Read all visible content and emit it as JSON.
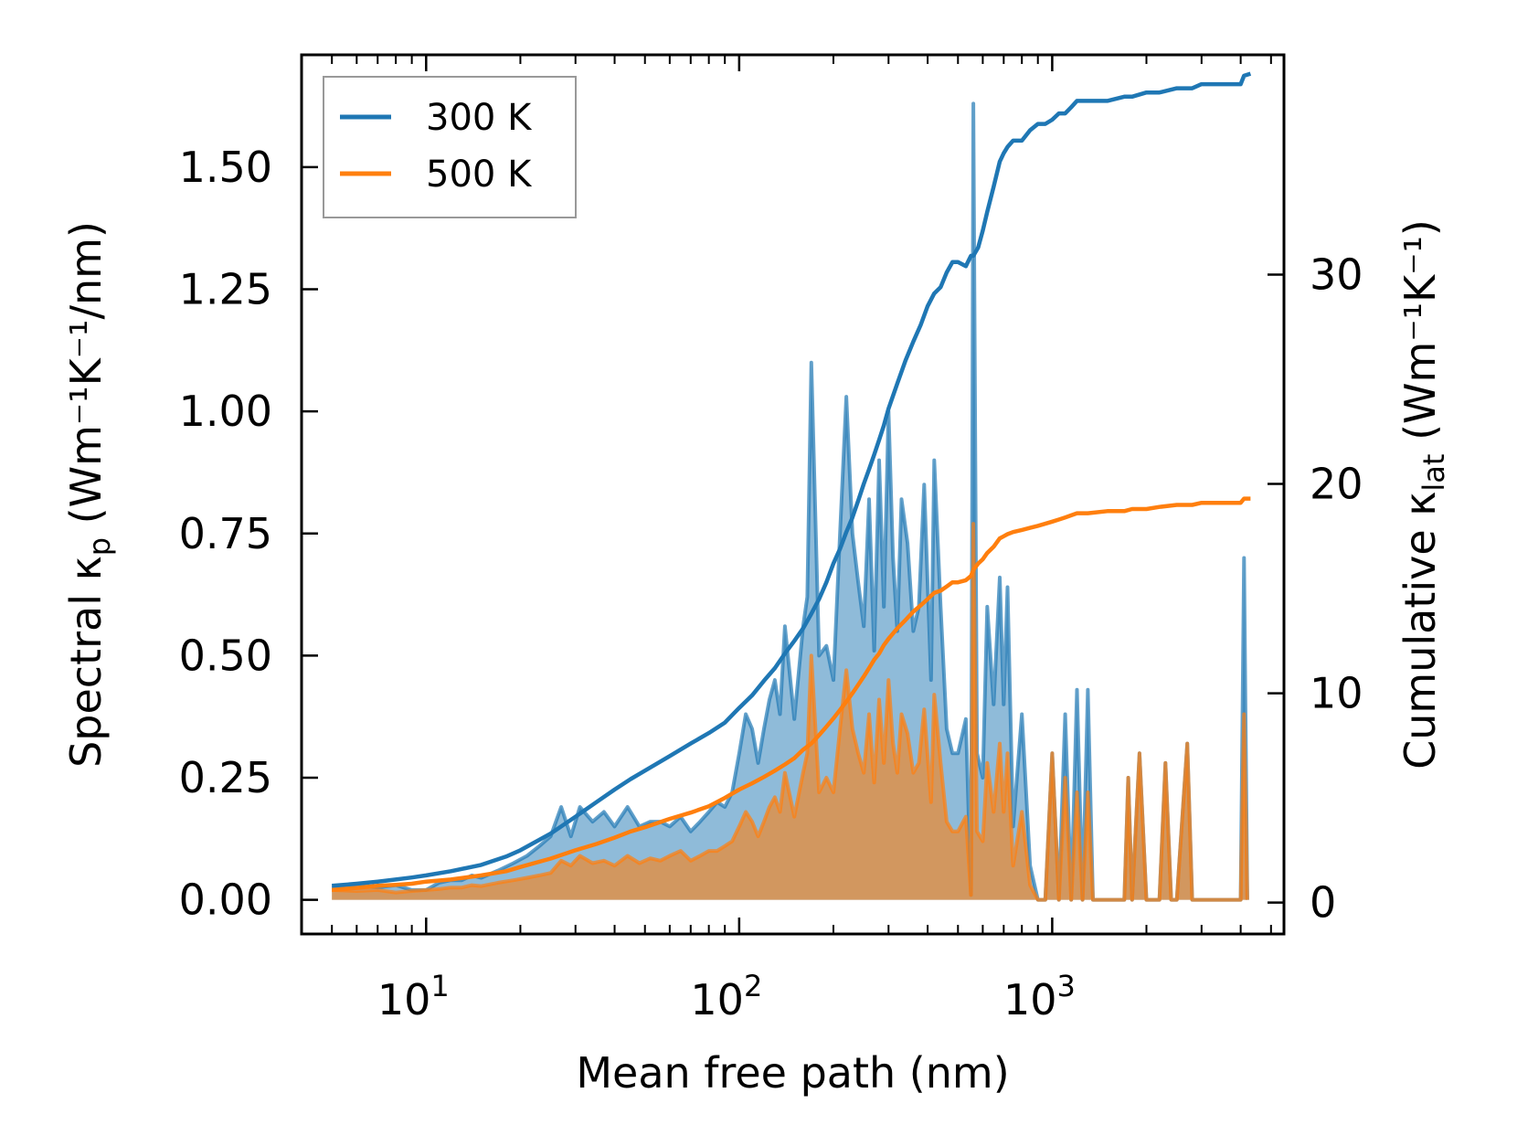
{
  "chart_data": {
    "type": "line",
    "xscale": "log",
    "xlabel": "Mean free path (nm)",
    "ylabel_left": {
      "prefix": "Spectral κ",
      "sub": "p",
      "units": " (Wm⁻¹K⁻¹/nm)"
    },
    "ylabel_right": {
      "prefix": "Cumulative κ",
      "sub": "lat",
      "units": " (Wm⁻¹K⁻¹)"
    },
    "xlim": [
      4.0,
      5500
    ],
    "ylim_left": [
      -0.07,
      1.73
    ],
    "ylim_right": [
      -1.5,
      40.5
    ],
    "x_ticks": [
      {
        "value": 10,
        "base": "10",
        "exp": "1"
      },
      {
        "value": 100,
        "base": "10",
        "exp": "2"
      },
      {
        "value": 1000,
        "base": "10",
        "exp": "3"
      }
    ],
    "y_ticks_left": [
      "0.00",
      "0.25",
      "0.50",
      "0.75",
      "1.00",
      "1.25",
      "1.50"
    ],
    "y_ticks_right": [
      "0",
      "10",
      "20",
      "30"
    ],
    "legend": {
      "position": "upper-left",
      "entries": [
        {
          "label": "300 K",
          "color": "#1f77b4"
        },
        {
          "label": "500 K",
          "color": "#ff7f0e"
        }
      ]
    },
    "series": [
      {
        "name": "300 K",
        "color": "#1f77b4",
        "spectral": {
          "x": [
            5,
            6,
            7,
            8,
            9,
            10,
            11,
            12,
            13,
            14,
            15,
            17,
            19,
            21,
            23,
            25,
            27,
            29,
            31,
            34,
            37,
            40,
            44,
            48,
            52,
            56,
            60,
            65,
            70,
            75,
            80,
            85,
            90,
            95,
            100,
            105,
            110,
            115,
            120,
            125,
            130,
            135,
            140,
            150,
            160,
            165,
            170,
            180,
            190,
            200,
            210,
            220,
            230,
            240,
            250,
            260,
            270,
            280,
            290,
            300,
            310,
            320,
            330,
            345,
            360,
            375,
            390,
            410,
            420,
            440,
            460,
            480,
            500,
            530,
            550,
            560,
            575,
            600,
            620,
            650,
            680,
            700,
            720,
            750,
            800,
            850,
            900,
            950,
            1000,
            1050,
            1100,
            1150,
            1200,
            1250,
            1300,
            1350,
            1500,
            1700,
            1750,
            1800,
            1900,
            2000,
            2200,
            2300,
            2400,
            2500,
            2700,
            2800,
            3000,
            3500,
            4000,
            4100,
            4200
          ],
          "y": [
            0.025,
            0.03,
            0.025,
            0.03,
            0.02,
            0.02,
            0.035,
            0.04,
            0.04,
            0.05,
            0.045,
            0.06,
            0.075,
            0.09,
            0.11,
            0.13,
            0.19,
            0.13,
            0.19,
            0.16,
            0.18,
            0.15,
            0.19,
            0.15,
            0.16,
            0.16,
            0.15,
            0.17,
            0.14,
            0.16,
            0.18,
            0.2,
            0.19,
            0.22,
            0.3,
            0.38,
            0.35,
            0.28,
            0.35,
            0.41,
            0.45,
            0.38,
            0.56,
            0.37,
            0.56,
            0.62,
            1.1,
            0.5,
            0.52,
            0.45,
            0.75,
            1.03,
            0.75,
            0.65,
            0.56,
            0.82,
            0.51,
            0.9,
            0.6,
            1.0,
            0.7,
            0.55,
            0.82,
            0.73,
            0.55,
            0.6,
            0.85,
            0.45,
            0.9,
            0.6,
            0.35,
            0.3,
            0.3,
            0.37,
            0.01,
            1.63,
            0.3,
            0.25,
            0.6,
            0.4,
            0.66,
            0.4,
            0.64,
            0.15,
            0.38,
            0.07,
            0.0,
            0.0,
            0.3,
            0.0,
            0.38,
            0.0,
            0.43,
            0.0,
            0.43,
            0.0,
            0.0,
            0.0,
            0.25,
            0.0,
            0.3,
            0.0,
            0.0,
            0.28,
            0.0,
            0.0,
            0.32,
            0.0,
            0.0,
            0.0,
            0.0,
            0.7,
            0.0
          ]
        },
        "cumulative": {
          "x": [
            5,
            6,
            7,
            8,
            9,
            10,
            12,
            15,
            18,
            20,
            25,
            30,
            35,
            40,
            45,
            50,
            60,
            70,
            80,
            90,
            100,
            110,
            120,
            130,
            140,
            150,
            160,
            170,
            180,
            190,
            200,
            210,
            220,
            230,
            240,
            250,
            260,
            270,
            280,
            290,
            300,
            320,
            340,
            360,
            380,
            400,
            420,
            440,
            460,
            480,
            500,
            530,
            550,
            560,
            580,
            600,
            620,
            650,
            680,
            700,
            720,
            750,
            800,
            850,
            900,
            950,
            1000,
            1050,
            1100,
            1150,
            1200,
            1300,
            1500,
            1700,
            1800,
            2000,
            2200,
            2500,
            2800,
            3000,
            3500,
            4000,
            4100,
            4300
          ],
          "y": [
            0.8,
            0.9,
            1.0,
            1.1,
            1.2,
            1.3,
            1.5,
            1.8,
            2.2,
            2.5,
            3.3,
            4.1,
            4.8,
            5.4,
            5.9,
            6.3,
            7.0,
            7.6,
            8.1,
            8.6,
            9.3,
            9.9,
            10.6,
            11.2,
            11.9,
            12.5,
            13.1,
            13.8,
            14.5,
            15.3,
            16.2,
            16.9,
            17.7,
            18.4,
            19.2,
            20.0,
            20.7,
            21.4,
            22.1,
            22.8,
            23.6,
            24.8,
            25.9,
            26.8,
            27.6,
            28.5,
            29.1,
            29.4,
            30.1,
            30.6,
            30.6,
            30.4,
            30.9,
            30.9,
            31.3,
            32.1,
            33.0,
            34.2,
            35.4,
            35.8,
            36.1,
            36.4,
            36.4,
            36.9,
            37.2,
            37.2,
            37.4,
            37.7,
            37.7,
            38.0,
            38.3,
            38.3,
            38.3,
            38.5,
            38.5,
            38.7,
            38.7,
            38.9,
            38.9,
            39.1,
            39.1,
            39.1,
            39.5,
            39.6
          ]
        }
      },
      {
        "name": "500 K",
        "color": "#ff7f0e",
        "spectral": {
          "x": [
            5,
            6,
            7,
            8,
            9,
            10,
            11,
            12,
            13,
            14,
            15,
            17,
            19,
            21,
            23,
            25,
            27,
            29,
            31,
            34,
            37,
            40,
            44,
            48,
            52,
            56,
            60,
            65,
            70,
            75,
            80,
            85,
            90,
            95,
            100,
            105,
            110,
            115,
            120,
            125,
            130,
            135,
            140,
            150,
            160,
            165,
            170,
            180,
            190,
            200,
            210,
            220,
            230,
            240,
            250,
            260,
            270,
            280,
            290,
            300,
            310,
            320,
            330,
            345,
            360,
            375,
            390,
            410,
            420,
            440,
            460,
            480,
            500,
            530,
            550,
            560,
            575,
            600,
            620,
            650,
            680,
            700,
            720,
            750,
            800,
            850,
            900,
            950,
            1000,
            1050,
            1100,
            1150,
            1200,
            1250,
            1300,
            1350,
            1500,
            1700,
            1750,
            1800,
            1900,
            2000,
            2200,
            2300,
            2400,
            2500,
            2700,
            2800,
            3000,
            3500,
            4000,
            4100,
            4200
          ],
          "y": [
            0.02,
            0.018,
            0.02,
            0.015,
            0.018,
            0.02,
            0.022,
            0.025,
            0.025,
            0.03,
            0.028,
            0.035,
            0.04,
            0.045,
            0.05,
            0.055,
            0.08,
            0.07,
            0.09,
            0.075,
            0.08,
            0.07,
            0.09,
            0.075,
            0.085,
            0.08,
            0.09,
            0.1,
            0.08,
            0.09,
            0.1,
            0.1,
            0.11,
            0.12,
            0.15,
            0.18,
            0.16,
            0.13,
            0.16,
            0.19,
            0.21,
            0.18,
            0.26,
            0.17,
            0.26,
            0.3,
            0.5,
            0.22,
            0.25,
            0.22,
            0.35,
            0.47,
            0.35,
            0.3,
            0.26,
            0.38,
            0.24,
            0.41,
            0.28,
            0.45,
            0.32,
            0.26,
            0.38,
            0.34,
            0.26,
            0.28,
            0.39,
            0.2,
            0.42,
            0.28,
            0.16,
            0.14,
            0.14,
            0.17,
            0.01,
            0.77,
            0.14,
            0.12,
            0.28,
            0.18,
            0.32,
            0.18,
            0.3,
            0.07,
            0.18,
            0.03,
            0.0,
            0.0,
            0.3,
            0.0,
            0.25,
            0.0,
            0.22,
            0.0,
            0.22,
            0.0,
            0.0,
            0.0,
            0.25,
            0.0,
            0.3,
            0.0,
            0.0,
            0.28,
            0.0,
            0.0,
            0.32,
            0.0,
            0.0,
            0.0,
            0.0,
            0.38,
            0.0
          ]
        },
        "cumulative": {
          "x": [
            5,
            6,
            7,
            8,
            9,
            10,
            12,
            15,
            18,
            20,
            25,
            30,
            35,
            40,
            45,
            50,
            60,
            70,
            80,
            90,
            100,
            110,
            120,
            130,
            140,
            150,
            160,
            170,
            180,
            190,
            200,
            210,
            220,
            230,
            240,
            250,
            260,
            270,
            280,
            290,
            300,
            320,
            340,
            360,
            380,
            400,
            420,
            440,
            460,
            480,
            500,
            530,
            550,
            560,
            580,
            600,
            620,
            650,
            680,
            700,
            720,
            750,
            800,
            850,
            900,
            950,
            1000,
            1050,
            1100,
            1150,
            1200,
            1300,
            1500,
            1700,
            1800,
            2000,
            2200,
            2500,
            2800,
            3000,
            3500,
            4000,
            4100,
            4300
          ],
          "y": [
            0.6,
            0.7,
            0.8,
            0.85,
            0.9,
            1.0,
            1.1,
            1.3,
            1.5,
            1.7,
            2.1,
            2.5,
            2.8,
            3.1,
            3.4,
            3.6,
            4.0,
            4.3,
            4.6,
            5.0,
            5.4,
            5.7,
            6.0,
            6.3,
            6.6,
            6.9,
            7.3,
            7.6,
            8.0,
            8.4,
            8.8,
            9.2,
            9.6,
            10.0,
            10.4,
            10.8,
            11.2,
            11.6,
            11.9,
            12.3,
            12.6,
            13.1,
            13.5,
            13.9,
            14.2,
            14.5,
            14.8,
            14.9,
            15.1,
            15.3,
            15.3,
            15.4,
            15.6,
            15.9,
            16.2,
            16.4,
            16.7,
            17.0,
            17.4,
            17.5,
            17.6,
            17.7,
            17.8,
            17.9,
            18.0,
            18.1,
            18.2,
            18.3,
            18.4,
            18.5,
            18.6,
            18.6,
            18.7,
            18.7,
            18.8,
            18.8,
            18.9,
            19.0,
            19.0,
            19.1,
            19.1,
            19.1,
            19.3,
            19.3
          ]
        }
      }
    ]
  }
}
